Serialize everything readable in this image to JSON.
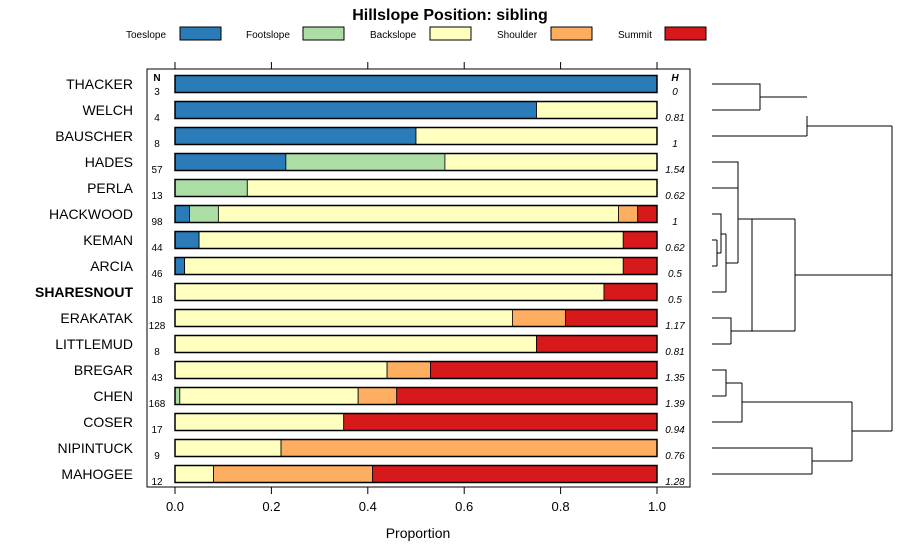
{
  "chart_data": {
    "type": "bar",
    "stacked": true,
    "orientation": "horizontal",
    "title": "Hillslope Position: sibling",
    "xlabel": "Proportion",
    "xlim": [
      0,
      1
    ],
    "xticks": [
      "0.0",
      "0.2",
      "0.4",
      "0.6",
      "0.8",
      "1.0"
    ],
    "n_header": "N",
    "h_header": "H",
    "legend_position": "top",
    "highlight_category": "SHARESNOUT",
    "series": [
      {
        "name": "Toeslope",
        "color": "#2B7BB9"
      },
      {
        "name": "Footslope",
        "color": "#ABDDA4"
      },
      {
        "name": "Backslope",
        "color": "#FFFFBF"
      },
      {
        "name": "Shoulder",
        "color": "#FDAE61"
      },
      {
        "name": "Summit",
        "color": "#D7191C"
      }
    ],
    "categories": [
      "THACKER",
      "WELCH",
      "BAUSCHER",
      "HADES",
      "PERLA",
      "HACKWOOD",
      "KEMAN",
      "ARCIA",
      "SHARESNOUT",
      "ERAKATAK",
      "LITTLEMUD",
      "BREGAR",
      "CHEN",
      "COSER",
      "NIPINTUCK",
      "MAHOGEE"
    ],
    "n": [
      "3",
      "4",
      "8",
      "57",
      "13",
      "98",
      "44",
      "46",
      "18",
      "128",
      "8",
      "43",
      "168",
      "17",
      "9",
      "12"
    ],
    "h": [
      "0",
      "0.81",
      "1",
      "1.54",
      "0.62",
      "1",
      "0.62",
      "0.5",
      "0.5",
      "1.17",
      "0.81",
      "1.35",
      "1.39",
      "0.94",
      "0.76",
      "1.28"
    ],
    "values": [
      [
        1.0,
        0.0,
        0.0,
        0.0,
        0.0
      ],
      [
        0.75,
        0.0,
        0.25,
        0.0,
        0.0
      ],
      [
        0.5,
        0.0,
        0.5,
        0.0,
        0.0
      ],
      [
        0.23,
        0.33,
        0.44,
        0.0,
        0.0
      ],
      [
        0.0,
        0.15,
        0.85,
        0.0,
        0.0
      ],
      [
        0.03,
        0.06,
        0.83,
        0.04,
        0.04
      ],
      [
        0.05,
        0.0,
        0.88,
        0.0,
        0.07
      ],
      [
        0.02,
        0.0,
        0.91,
        0.0,
        0.07
      ],
      [
        0.0,
        0.0,
        0.89,
        0.0,
        0.11
      ],
      [
        0.0,
        0.0,
        0.7,
        0.11,
        0.19
      ],
      [
        0.0,
        0.0,
        0.75,
        0.0,
        0.25
      ],
      [
        0.0,
        0.0,
        0.44,
        0.09,
        0.47
      ],
      [
        0.0,
        0.01,
        0.37,
        0.08,
        0.54
      ],
      [
        0.0,
        0.0,
        0.35,
        0.0,
        0.65
      ],
      [
        0.0,
        0.0,
        0.22,
        0.78,
        0.0
      ],
      [
        0.0,
        0.0,
        0.08,
        0.33,
        0.59
      ]
    ]
  }
}
